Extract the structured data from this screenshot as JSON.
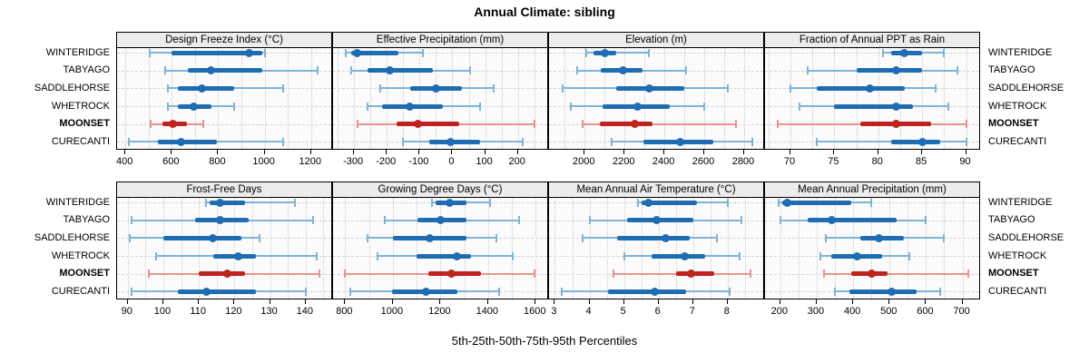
{
  "title": "Annual Climate: sibling",
  "caption": "5th-25th-50th-75th-95th Percentiles",
  "sites": [
    "WINTERIDGE",
    "TABYAGO",
    "SADDLEHORSE",
    "WHETROCK",
    "MOONSET",
    "CURECANTI"
  ],
  "highlight_site": "MOONSET",
  "percentile_labels": [
    "5th",
    "25th",
    "50th",
    "75th",
    "95th"
  ],
  "colors": {
    "blue": "#1e6db2",
    "blue_light": "#7db4da",
    "red": "#c0221f",
    "red_light": "#e8948c",
    "strip_bg": "#ececec",
    "panel_bg": "#fbfbfb",
    "gridline": "#cccccc",
    "border": "#000000"
  },
  "chart_data": [
    {
      "type": "scatter",
      "subtype": "percentile-interval-dotplot",
      "title": "Design Freeze Index (°C)",
      "xlim": [
        364,
        1295
      ],
      "ticks": [
        400,
        600,
        800,
        1000,
        1200
      ],
      "grid_step": 100,
      "series": [
        {
          "name": "WINTERIDGE",
          "values": [
            505,
            600,
            935,
            990,
            1000
          ]
        },
        {
          "name": "TABYAGO",
          "values": [
            570,
            670,
            770,
            990,
            1230
          ]
        },
        {
          "name": "SADDLEHORSE",
          "values": [
            585,
            625,
            730,
            870,
            1080
          ]
        },
        {
          "name": "WHETROCK",
          "values": [
            585,
            625,
            695,
            770,
            870
          ]
        },
        {
          "name": "MOONSET",
          "values": [
            510,
            560,
            605,
            665,
            735
          ]
        },
        {
          "name": "CURECANTI",
          "values": [
            415,
            540,
            640,
            795,
            1080
          ]
        }
      ]
    },
    {
      "type": "scatter",
      "subtype": "percentile-interval-dotplot",
      "title": "Effective Precipitation (mm)",
      "xlim": [
        -364,
        295
      ],
      "ticks": [
        -300,
        -200,
        -100,
        0,
        100,
        200
      ],
      "grid_step": 50,
      "series": [
        {
          "name": "WINTERIDGE",
          "values": [
            -325,
            -310,
            -290,
            -165,
            -90
          ]
        },
        {
          "name": "TABYAGO",
          "values": [
            -310,
            -260,
            -190,
            -60,
            55
          ]
        },
        {
          "name": "SADDLEHORSE",
          "values": [
            -220,
            -130,
            -50,
            30,
            125
          ]
        },
        {
          "name": "WHETROCK",
          "values": [
            -260,
            -215,
            -130,
            -30,
            85
          ]
        },
        {
          "name": "MOONSET",
          "values": [
            -290,
            -170,
            -105,
            20,
            250
          ]
        },
        {
          "name": "CURECANTI",
          "values": [
            -150,
            -70,
            -5,
            85,
            215
          ]
        }
      ]
    },
    {
      "type": "scatter",
      "subtype": "percentile-interval-dotplot",
      "title": "Elevation (m)",
      "xlim": [
        1821,
        2905
      ],
      "ticks": [
        2000,
        2200,
        2400,
        2600,
        2800
      ],
      "grid_step": 100,
      "series": [
        {
          "name": "WINTERIDGE",
          "values": [
            2010,
            2045,
            2100,
            2160,
            2320
          ]
        },
        {
          "name": "TABYAGO",
          "values": [
            1960,
            2080,
            2190,
            2290,
            2510
          ]
        },
        {
          "name": "SADDLEHORSE",
          "values": [
            1890,
            2160,
            2325,
            2500,
            2720
          ]
        },
        {
          "name": "WHETROCK",
          "values": [
            1930,
            2090,
            2265,
            2425,
            2600
          ]
        },
        {
          "name": "MOONSET",
          "values": [
            1990,
            2075,
            2250,
            2340,
            2760
          ]
        },
        {
          "name": "CURECANTI",
          "values": [
            2135,
            2295,
            2480,
            2645,
            2840
          ]
        }
      ]
    },
    {
      "type": "scatter",
      "subtype": "percentile-interval-dotplot",
      "title": "Fraction of Annual PPT as Rain",
      "xlim": [
        67.1,
        91.7
      ],
      "ticks": [
        70,
        75,
        80,
        85,
        90
      ],
      "grid_step": 2.5,
      "series": [
        {
          "name": "WINTERIDGE",
          "values": [
            80.5,
            81.5,
            83,
            85,
            87.5
          ]
        },
        {
          "name": "TABYAGO",
          "values": [
            72,
            77.5,
            82,
            85,
            89
          ]
        },
        {
          "name": "SADDLEHORSE",
          "values": [
            70,
            73,
            79,
            83,
            86.5
          ]
        },
        {
          "name": "WHETROCK",
          "values": [
            71,
            75,
            82,
            84,
            88
          ]
        },
        {
          "name": "MOONSET",
          "values": [
            68.5,
            78,
            82,
            86,
            90
          ]
        },
        {
          "name": "CURECANTI",
          "values": [
            73,
            81.5,
            85,
            87,
            90
          ]
        }
      ]
    },
    {
      "type": "scatter",
      "subtype": "percentile-interval-dotplot",
      "title": "Frost-Free Days",
      "xlim": [
        87,
        147.7
      ],
      "ticks": [
        90,
        100,
        110,
        120,
        130,
        140
      ],
      "grid_step": 5,
      "series": [
        {
          "name": "WINTERIDGE",
          "values": [
            112,
            113,
            116,
            123,
            137
          ]
        },
        {
          "name": "TABYAGO",
          "values": [
            91,
            109,
            116,
            124,
            142
          ]
        },
        {
          "name": "SADDLEHORSE",
          "values": [
            90.5,
            100,
            114,
            122,
            127
          ]
        },
        {
          "name": "WHETROCK",
          "values": [
            98,
            114,
            121,
            126,
            143
          ]
        },
        {
          "name": "MOONSET",
          "values": [
            96,
            110,
            118,
            123,
            144
          ]
        },
        {
          "name": "CURECANTI",
          "values": [
            91,
            104,
            112,
            126,
            140
          ]
        }
      ]
    },
    {
      "type": "scatter",
      "subtype": "percentile-interval-dotplot",
      "title": "Growing Degree Days (°C)",
      "xlim": [
        749,
        1656
      ],
      "ticks": [
        800,
        1000,
        1200,
        1400,
        1600
      ],
      "grid_step": 100,
      "series": [
        {
          "name": "WINTERIDGE",
          "values": [
            1165,
            1180,
            1240,
            1310,
            1410
          ]
        },
        {
          "name": "TABYAGO",
          "values": [
            965,
            1105,
            1200,
            1310,
            1530
          ]
        },
        {
          "name": "SADDLEHORSE",
          "values": [
            895,
            1000,
            1155,
            1310,
            1435
          ]
        },
        {
          "name": "WHETROCK",
          "values": [
            935,
            1100,
            1270,
            1330,
            1505
          ]
        },
        {
          "name": "MOONSET",
          "values": [
            800,
            1150,
            1245,
            1370,
            1595
          ]
        },
        {
          "name": "CURECANTI",
          "values": [
            820,
            995,
            1140,
            1270,
            1445
          ]
        }
      ]
    },
    {
      "type": "scatter",
      "subtype": "percentile-interval-dotplot",
      "title": "Mean Annual Air Temperature (°C)",
      "xlim": [
        2.83,
        9.08
      ],
      "ticks": [
        3,
        4,
        5,
        6,
        7,
        8
      ],
      "grid_step": 0.5,
      "series": [
        {
          "name": "WINTERIDGE",
          "values": [
            5.4,
            5.5,
            5.7,
            7.1,
            8.0
          ]
        },
        {
          "name": "TABYAGO",
          "values": [
            4.0,
            5.1,
            5.95,
            7.0,
            8.4
          ]
        },
        {
          "name": "SADDLEHORSE",
          "values": [
            3.8,
            4.8,
            6.2,
            6.9,
            7.7
          ]
        },
        {
          "name": "WHETROCK",
          "values": [
            5.0,
            5.8,
            6.75,
            7.35,
            8.35
          ]
        },
        {
          "name": "MOONSET",
          "values": [
            4.7,
            6.5,
            6.95,
            7.6,
            8.65
          ]
        },
        {
          "name": "CURECANTI",
          "values": [
            3.2,
            4.55,
            5.9,
            6.8,
            8.05
          ]
        }
      ]
    },
    {
      "type": "scatter",
      "subtype": "percentile-interval-dotplot",
      "title": "Mean Annual Precipitation (mm)",
      "xlim": [
        158,
        751
      ],
      "ticks": [
        200,
        300,
        400,
        500,
        600,
        700
      ],
      "grid_step": 50,
      "series": [
        {
          "name": "WINTERIDGE",
          "values": [
            195,
            205,
            218,
            395,
            450
          ]
        },
        {
          "name": "TABYAGO",
          "values": [
            200,
            275,
            340,
            520,
            600
          ]
        },
        {
          "name": "SADDLEHORSE",
          "values": [
            325,
            420,
            470,
            540,
            650
          ]
        },
        {
          "name": "WHETROCK",
          "values": [
            310,
            340,
            410,
            480,
            555
          ]
        },
        {
          "name": "MOONSET",
          "values": [
            320,
            395,
            450,
            495,
            715
          ]
        },
        {
          "name": "CURECANTI",
          "values": [
            350,
            390,
            505,
            575,
            640
          ]
        }
      ]
    }
  ]
}
